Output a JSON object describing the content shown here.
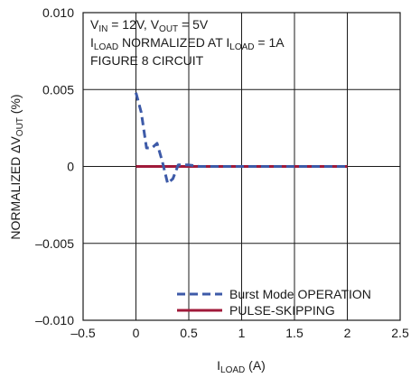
{
  "chart_data": {
    "type": "line",
    "xlim": [
      -0.5,
      2.5
    ],
    "ylim": [
      -0.01,
      0.01
    ],
    "x_ticks": [
      -0.5,
      0,
      0.5,
      1,
      1.5,
      2,
      2.5
    ],
    "x_tick_labels": [
      "–0.5",
      "0",
      "0.5",
      "1",
      "1.5",
      "2",
      "2.5"
    ],
    "y_ticks": [
      -0.01,
      -0.005,
      0,
      0.005,
      0.01
    ],
    "y_tick_labels": [
      "–0.010",
      "–0.005",
      "0",
      "0.005",
      "0.010"
    ],
    "grid": true,
    "xlabel": {
      "main": "I",
      "sub": "LOAD",
      "tail": " (A)"
    },
    "ylabel": {
      "main": "NORMALIZED ΔV",
      "sub": "OUT",
      "tail": " (%)"
    },
    "annotations": {
      "line1": {
        "p1": "V",
        "s1": "IN",
        "p2": " = 12V, V",
        "s2": "OUT",
        "p3": " = 5V"
      },
      "line2": {
        "p1": "I",
        "s1": "LOAD",
        "p2": " NORMALIZED AT I",
        "s2": "LOAD",
        "p3": " = 1A"
      },
      "line3": "FIGURE 8 CIRCUIT"
    },
    "legend_position": "bottom-right",
    "series": [
      {
        "name": "Burst Mode OPERATION",
        "color": "#3d5aa8",
        "dash": "dashed",
        "x": [
          0.0,
          0.05,
          0.1,
          0.15,
          0.2,
          0.25,
          0.3,
          0.35,
          0.4,
          0.5,
          0.6,
          0.8,
          1.0,
          1.2,
          1.4,
          1.6,
          1.8,
          2.0
        ],
        "y": [
          0.0048,
          0.0035,
          0.0012,
          0.0012,
          0.0015,
          0.0003,
          -0.0011,
          -0.0008,
          0.0001,
          0.0001,
          0.0,
          0.0,
          0.0,
          0.0,
          0.0,
          0.0,
          0.0,
          0.0
        ]
      },
      {
        "name": "PULSE-SKIPPING",
        "color": "#a01a3a",
        "dash": "solid",
        "x": [
          0.0,
          0.2,
          0.4,
          0.6,
          0.8,
          1.0,
          1.2,
          1.4,
          1.6,
          1.8,
          2.0
        ],
        "y": [
          0.0,
          0.0,
          0.0,
          0.0,
          0.0,
          0.0,
          0.0,
          0.0,
          0.0,
          0.0,
          0.0
        ]
      }
    ]
  }
}
